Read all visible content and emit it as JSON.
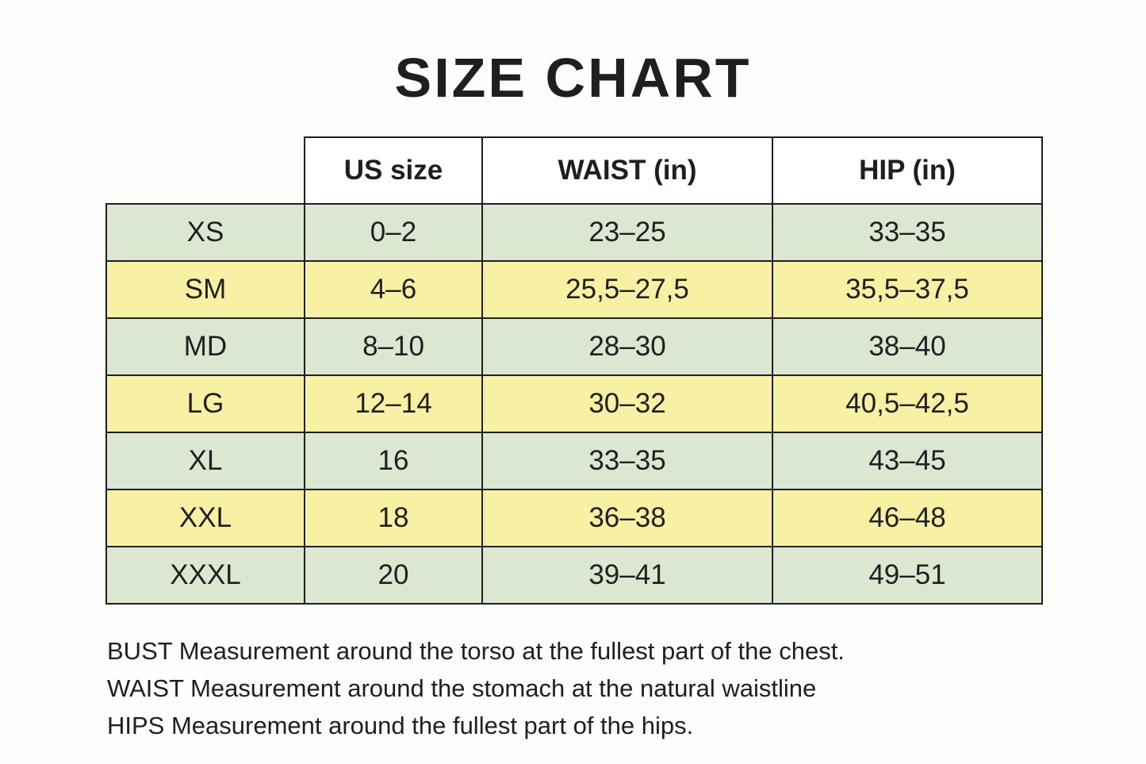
{
  "title": "SIZE CHART",
  "colors": {
    "page_background": "#fdfdfb",
    "text": "#1f1f1f",
    "border": "#1f1f1f",
    "row_green": "#dbe7d1",
    "row_yellow": "#f8f0a3",
    "header_background": "#ffffff"
  },
  "table": {
    "columns": [
      "US size",
      "WAIST (in)",
      "HIP (in)"
    ],
    "rows": [
      {
        "color": "green",
        "cells": [
          "XS",
          "0–2",
          "23–25",
          "33–35"
        ]
      },
      {
        "color": "yellow",
        "cells": [
          "SM",
          "4–6",
          "25,5–27,5",
          "35,5–37,5"
        ]
      },
      {
        "color": "green",
        "cells": [
          "MD",
          "8–10",
          "28–30",
          "38–40"
        ]
      },
      {
        "color": "yellow",
        "cells": [
          "LG",
          "12–14",
          "30–32",
          "40,5–42,5"
        ]
      },
      {
        "color": "green",
        "cells": [
          "XL",
          "16",
          "33–35",
          "43–45"
        ]
      },
      {
        "color": "yellow",
        "cells": [
          "XXL",
          "18",
          "36–38",
          "46–48"
        ]
      },
      {
        "color": "green",
        "cells": [
          "XXXL",
          "20",
          "39–41",
          "49–51"
        ]
      }
    ]
  },
  "footer": {
    "lines": [
      "BUST Measurement around the torso at the fullest part of the chest.",
      "WAIST Measurement around the stomach at the natural waistline",
      "HIPS Measurement around the fullest part of the hips."
    ]
  }
}
